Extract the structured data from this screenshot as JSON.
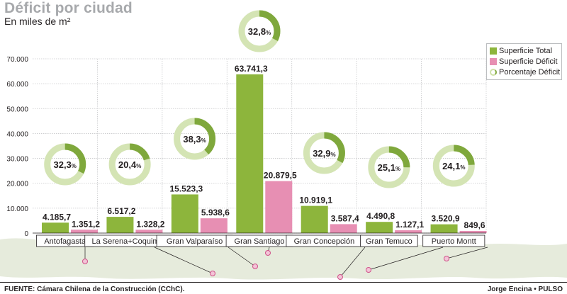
{
  "header": {
    "title": "Déficit por ciudad",
    "subtitle": "En miles de m²"
  },
  "footer": {
    "source": "FUENTE: Cámara Chilena de la Construcción (CChC).",
    "credit": "Jorge Encina • PULSO"
  },
  "colors": {
    "total": "#8db53c",
    "deficit": "#e78fb3",
    "ring_bg": "#d4e4b4",
    "ring_fg": "#7fa83c",
    "map": "#e6ebdc"
  },
  "chart_data": {
    "type": "bar",
    "title": "Déficit por ciudad",
    "ylabel": "En miles de m²",
    "ylim": [
      0,
      70000
    ],
    "yticks": [
      "0",
      "10.000",
      "20.000",
      "30.000",
      "40.000",
      "50.000",
      "60.000",
      "70.000"
    ],
    "grid": true,
    "legend_position": "top-right",
    "categories": [
      "Antofagasta",
      "La Serena+Coquimbo",
      "Gran Valparaíso",
      "Gran Santiago",
      "Gran Concepción",
      "Gran Temuco",
      "Puerto Montt"
    ],
    "series": [
      {
        "name": "Superficie Total",
        "values": [
          4185.7,
          6517.2,
          15523.3,
          63741.3,
          10919.1,
          4490.8,
          3520.9
        ],
        "labels": [
          "4.185,7",
          "6.517,2",
          "15.523,3",
          "63.741,3",
          "10.919,1",
          "4.490,8",
          "3.520,9"
        ]
      },
      {
        "name": "Superficie Déficit",
        "values": [
          1351.2,
          1328.2,
          5938.6,
          20879.5,
          3587.4,
          1127.1,
          849.6
        ],
        "labels": [
          "1.351,2",
          "1.328,2",
          "5.938,6",
          "20.879,5",
          "3.587,4",
          "1.127,1",
          "849,6"
        ]
      },
      {
        "name": "Porcentaje Déficit",
        "values": [
          32.3,
          20.4,
          38.3,
          32.8,
          32.9,
          25.1,
          24.1
        ],
        "labels": [
          "32,3",
          "20,4",
          "38,3",
          "32,8",
          "32,9",
          "25,1",
          "24,1"
        ],
        "unit": "%"
      }
    ]
  }
}
